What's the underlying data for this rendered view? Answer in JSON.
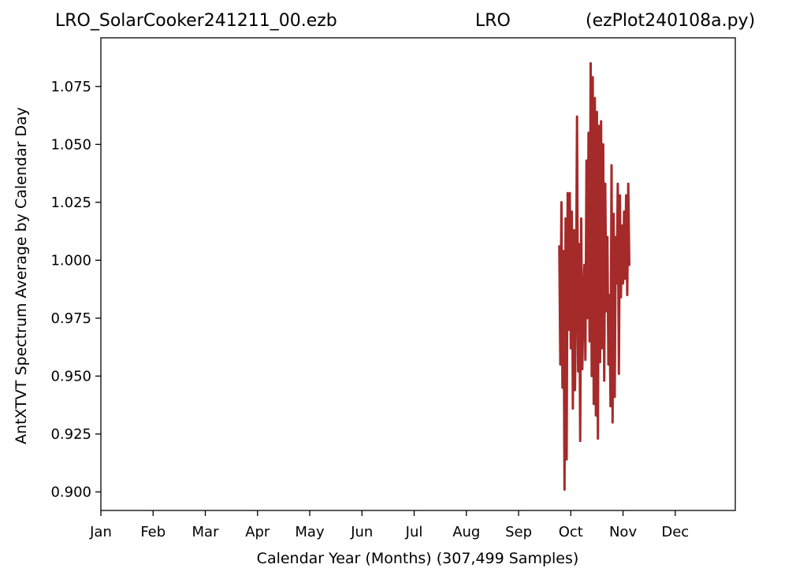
{
  "chart_data": {
    "type": "line",
    "title": {
      "left": "LRO_SolarCooker241211_00.ezb",
      "center": "LRO",
      "right": "(ezPlot240108a.py)"
    },
    "xlabel": "Calendar Year (Months) (307,499 Samples)",
    "ylabel": "AntXTVT Spectrum Average by Calendar Day",
    "x_tick_labels": [
      "Jan",
      "Feb",
      "Mar",
      "Apr",
      "May",
      "Jun",
      "Jul",
      "Aug",
      "Sep",
      "Oct",
      "Nov",
      "Dec"
    ],
    "y_ticks": [
      "0.900",
      "0.925",
      "0.950",
      "0.975",
      "1.000",
      "1.025",
      "1.050",
      "1.075"
    ],
    "xlim": [
      0,
      12.15
    ],
    "ylim": [
      0.892,
      1.096
    ],
    "grid": false,
    "series": [
      {
        "color": "#a52a2a",
        "x": [
          8.78,
          8.8,
          8.82,
          8.84,
          8.86,
          8.88,
          8.9,
          8.92,
          8.94,
          8.96,
          8.98,
          9.0,
          9.02,
          9.04,
          9.06,
          9.08,
          9.1,
          9.12,
          9.14,
          9.16,
          9.18,
          9.2,
          9.22,
          9.24,
          9.26,
          9.28,
          9.3,
          9.32,
          9.34,
          9.36,
          9.38,
          9.4,
          9.42,
          9.44,
          9.46,
          9.48,
          9.5,
          9.52,
          9.54,
          9.56,
          9.58,
          9.6,
          9.62,
          9.64,
          9.66,
          9.68,
          9.7,
          9.72,
          9.74,
          9.76,
          9.78,
          9.8,
          9.82,
          9.84,
          9.86,
          9.88,
          9.9,
          9.92,
          9.94,
          9.96,
          9.98,
          10.0,
          10.02,
          10.04,
          10.06,
          10.08,
          10.1,
          10.12
        ],
        "y": [
          1.006,
          0.955,
          1.025,
          0.945,
          1.004,
          0.901,
          1.018,
          0.914,
          1.029,
          0.97,
          1.029,
          0.962,
          1.021,
          0.936,
          1.013,
          0.944,
          0.985,
          1.062,
          0.952,
          1.007,
          0.922,
          1.018,
          0.953,
          0.983,
          0.998,
          0.957,
          1.043,
          0.975,
          1.055,
          0.965,
          1.085,
          0.95,
          1.079,
          0.938,
          1.07,
          0.933,
          1.064,
          0.923,
          1.058,
          0.956,
          1.06,
          0.962,
          1.05,
          0.948,
          1.033,
          0.978,
          1.01,
          0.955,
          0.985,
          0.937,
          1.041,
          0.93,
          1.02,
          0.941,
          1.01,
          0.99,
          1.033,
          0.951,
          1.028,
          0.984,
          1.015,
          0.99,
          1.021,
          0.992,
          1.028,
          0.985,
          1.033,
          0.998
        ]
      }
    ]
  }
}
